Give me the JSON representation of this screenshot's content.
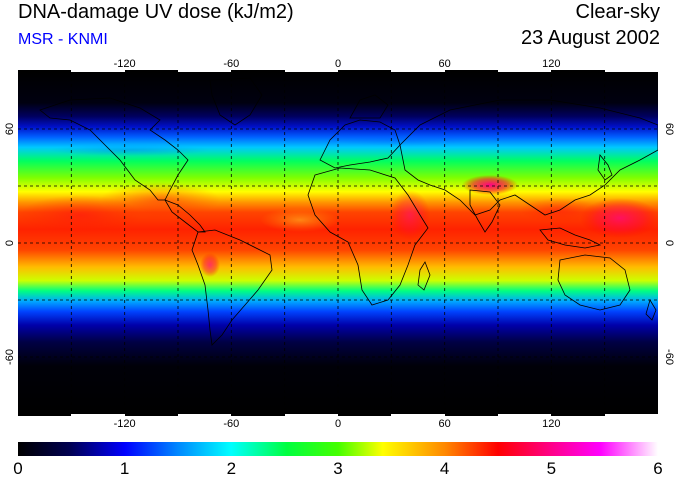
{
  "header": {
    "title": "DNA-damage UV dose (kJ/m2)",
    "source": "MSR - KNMI",
    "condition": "Clear-sky",
    "date": "23 August 2002"
  },
  "axes": {
    "lon_ticks": [
      -120,
      -60,
      0,
      60,
      120
    ],
    "lat_ticks": [
      60,
      0,
      -60
    ],
    "lon_range": [
      -180,
      180
    ],
    "lat_range": [
      -90,
      90
    ],
    "grid_spacing_deg": 30
  },
  "colorbar": {
    "min": 0,
    "max": 6,
    "tick_values": [
      0,
      1,
      2,
      3,
      4,
      5,
      6
    ],
    "tick_labels": [
      "0",
      "1",
      "2",
      "3",
      "4",
      "5",
      "6"
    ],
    "colors": [
      "#000000",
      "#000066",
      "#0000ff",
      "#00ccff",
      "#00ff44",
      "#ffff00",
      "#ff7700",
      "#ff0022",
      "#ff00aa",
      "#ffffff"
    ]
  },
  "colors": {
    "title": "#000000",
    "source": "#0000ff"
  }
}
